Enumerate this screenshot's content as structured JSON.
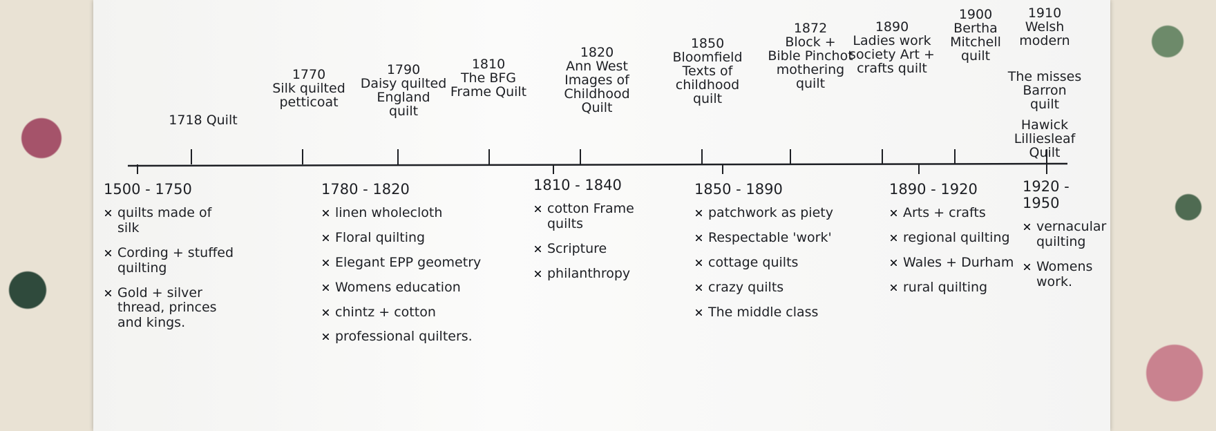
{
  "timeline": {
    "quilts": [
      {
        "text": "1718 Quilt"
      },
      {
        "year": "1770",
        "text": "Silk quilted petticoat"
      },
      {
        "year": "1790",
        "text": "Daisy quilted England quilt"
      },
      {
        "year": "1810",
        "text": "The BFG Frame Quilt"
      },
      {
        "year": "1820",
        "text": "Ann West Images of Childhood Quilt"
      },
      {
        "year": "1850",
        "text": "Bloomfield Texts of childhood quilt"
      },
      {
        "year": "1872",
        "text": "Block + Bible Pinchot mothering quilt"
      },
      {
        "year": "1890",
        "text": "Ladies work society Art + crafts quilt"
      },
      {
        "year": "1900",
        "text": "Bertha Mitchell quilt"
      },
      {
        "year": "1910",
        "text": "Welsh modern"
      },
      {
        "text": "The misses Barron quilt"
      },
      {
        "text": "Hawick Lilliesleaf Quilt"
      }
    ],
    "periods": [
      {
        "range": "1500 - 1750",
        "items": [
          "quilts made of silk",
          "Cording + stuffed quilting",
          "Gold + silver thread, princes and kings."
        ]
      },
      {
        "range": "1780 - 1820",
        "items": [
          "linen wholecloth",
          "Floral quilting",
          "Elegant EPP geometry",
          "Womens education",
          "chintz + cotton",
          "professional quilters."
        ]
      },
      {
        "range": "1810 - 1840",
        "items": [
          "cotton Frame quilts",
          "Scripture",
          "philanthropy"
        ]
      },
      {
        "range": "1850 - 1890",
        "items": [
          "patchwork as piety",
          "Respectable 'work'",
          "cottage quilts",
          "crazy quilts",
          "The middle class"
        ]
      },
      {
        "range": "1890 - 1920",
        "items": [
          "Arts + crafts",
          "regional quilting",
          "Wales + Durham",
          "rural quilting"
        ]
      },
      {
        "range": "1920 - 1950",
        "items": [
          "vernacular quilting",
          "Womens work."
        ]
      }
    ]
  }
}
